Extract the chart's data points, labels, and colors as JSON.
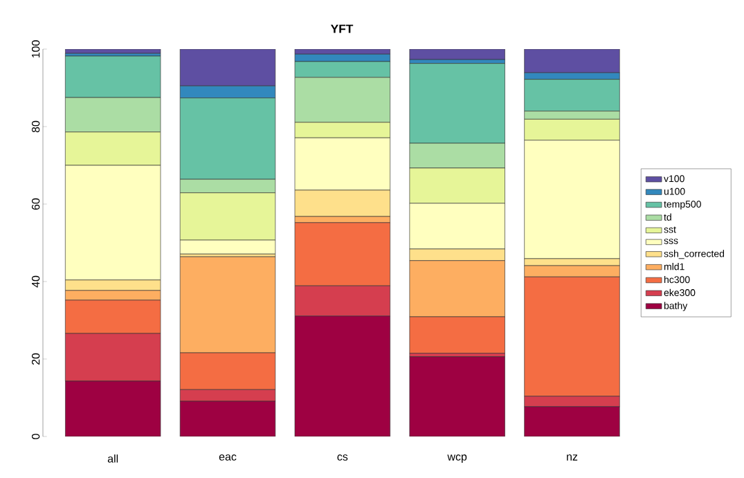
{
  "chart_data": {
    "type": "bar",
    "title": "YFT",
    "stacked": true,
    "categories": [
      "all",
      "eac",
      "cs",
      "wcp",
      "nz"
    ],
    "ylim": [
      0,
      100
    ],
    "yticks": [
      0,
      20,
      40,
      60,
      80,
      100
    ],
    "legend": "right",
    "series": [
      {
        "name": "bathy",
        "color": "#9e0142",
        "values": [
          14.3,
          9.1,
          31.1,
          20.6,
          7.7
        ]
      },
      {
        "name": "eke300",
        "color": "#d53e4f",
        "values": [
          12.3,
          3.0,
          7.8,
          0.9,
          2.7
        ]
      },
      {
        "name": "hc300",
        "color": "#f46d43",
        "values": [
          8.6,
          9.5,
          16.3,
          9.4,
          30.8
        ]
      },
      {
        "name": "mld1",
        "color": "#fdae61",
        "values": [
          2.5,
          24.8,
          1.6,
          14.5,
          2.9
        ]
      },
      {
        "name": "ssh_corrected",
        "color": "#fee08b",
        "values": [
          2.7,
          0.7,
          6.8,
          3.0,
          1.8
        ]
      },
      {
        "name": "sss",
        "color": "#ffffbf",
        "values": [
          29.6,
          3.6,
          13.5,
          11.8,
          30.6
        ]
      },
      {
        "name": "sst",
        "color": "#e6f598",
        "values": [
          8.6,
          12.2,
          4.0,
          9.1,
          5.4
        ]
      },
      {
        "name": "td",
        "color": "#abdda4",
        "values": [
          8.9,
          3.5,
          11.6,
          6.4,
          2.1
        ]
      },
      {
        "name": "temp500",
        "color": "#66c2a5",
        "values": [
          10.7,
          21.0,
          4.1,
          20.6,
          8.2
        ]
      },
      {
        "name": "u100",
        "color": "#3288bd",
        "values": [
          0.7,
          3.1,
          1.9,
          1.0,
          1.7
        ]
      },
      {
        "name": "v100",
        "color": "#5e4fa2",
        "values": [
          1.1,
          9.5,
          1.3,
          2.7,
          6.1
        ]
      }
    ]
  }
}
